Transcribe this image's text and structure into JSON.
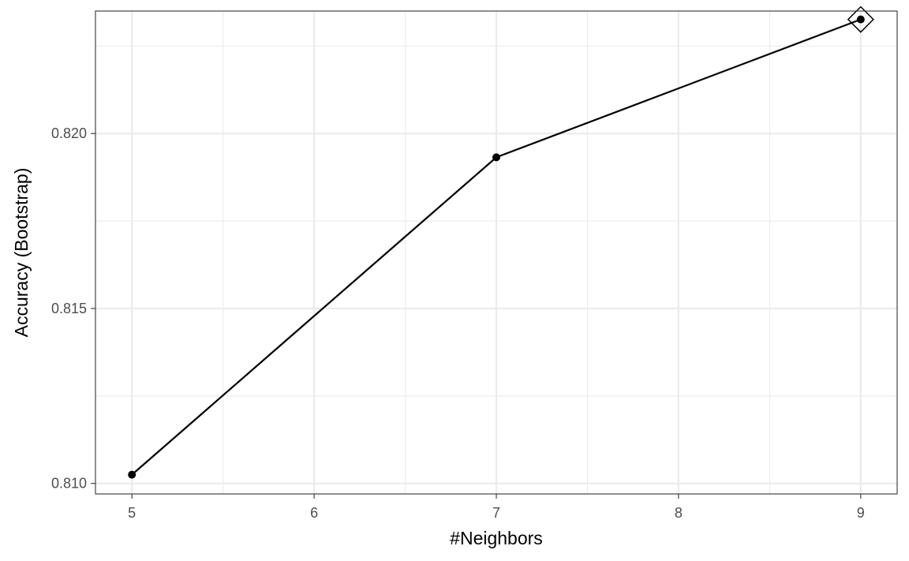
{
  "chart_data": {
    "type": "line",
    "title": "",
    "xlabel": "#Neighbors",
    "ylabel": "Accuracy (Bootstrap)",
    "x": [
      5,
      7,
      9
    ],
    "y": [
      0.81025,
      0.81932,
      0.82326
    ],
    "best": {
      "x": 9,
      "y": 0.82326,
      "marker": "diamond"
    },
    "xlim": [
      4.8,
      9.2
    ],
    "ylim": [
      0.8097,
      0.8235
    ],
    "x_ticks": [
      5,
      6,
      7,
      8,
      9
    ],
    "x_tick_labels": [
      "5",
      "6",
      "7",
      "8",
      "9"
    ],
    "y_ticks": [
      0.81,
      0.815,
      0.82
    ],
    "y_tick_labels": [
      "0.810",
      "0.815",
      "0.820"
    ],
    "x_minor": [
      5.5,
      6.5,
      7.5,
      8.5
    ],
    "y_minor": [
      0.8125,
      0.8175,
      0.8225
    ],
    "grid": true,
    "colors": {
      "line": "#000000",
      "grid": "#ebebeb",
      "panel_border": "#333333",
      "tick_text": "#4d4d4d"
    }
  }
}
